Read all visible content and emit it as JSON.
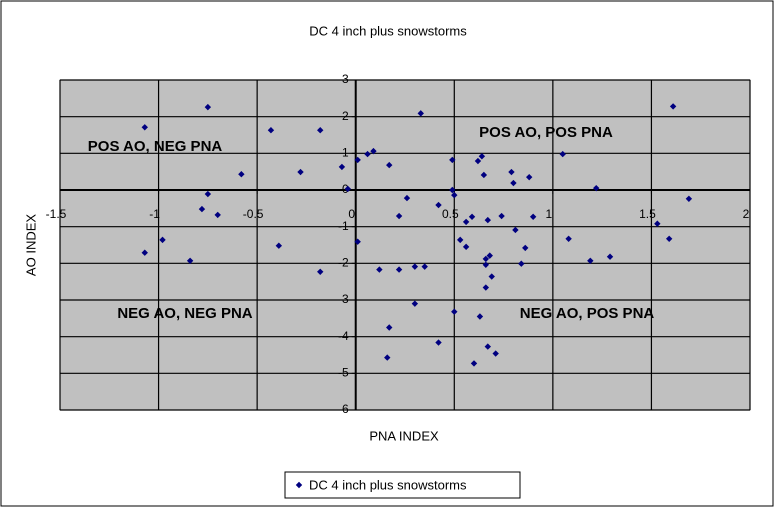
{
  "chart_data": {
    "type": "scatter",
    "title": "DC 4 inch plus snowstorms",
    "x_label": "PNA INDEX",
    "y_label": "AO INDEX",
    "xlim": [
      -1.5,
      2
    ],
    "xticks": [
      -1.5,
      -1,
      -0.5,
      0,
      0.5,
      1,
      1.5,
      2
    ],
    "ylim": [
      -6,
      3
    ],
    "yticks": [
      3,
      2,
      1,
      0,
      -1,
      -2,
      -3,
      -4,
      -5,
      -6
    ],
    "grid": true,
    "legend": "bottom",
    "annotations": [
      "POS AO, NEG PNA",
      "POS AO, POS PNA",
      "NEG AO, NEG PNA",
      "NEG AO, POS PNA"
    ],
    "series": [
      {
        "name": "DC 4 inch plus snowstorms",
        "color": "#000080",
        "x": [
          -1.07,
          -0.75,
          -0.43,
          -0.18,
          -0.58,
          -0.28,
          -0.75,
          -0.78,
          -0.7,
          -0.98,
          -1.07,
          -0.84,
          -0.39,
          -0.18,
          -0.07,
          -0.04,
          0.01,
          0.06,
          0.09,
          0.01,
          0.33,
          0.17,
          0.26,
          0.22,
          0.12,
          0.22,
          0.3,
          0.35,
          0.3,
          0.17,
          0.16,
          0.42,
          0.42,
          0.49,
          0.49,
          0.5,
          0.53,
          0.56,
          0.56,
          0.5,
          0.59,
          0.62,
          0.64,
          0.65,
          0.67,
          0.74,
          0.66,
          0.66,
          0.68,
          0.69,
          0.66,
          0.63,
          0.6,
          0.67,
          0.71,
          0.79,
          0.8,
          0.88,
          0.81,
          0.9,
          0.86,
          0.84,
          1.05,
          1.08,
          1.22,
          1.19,
          1.29,
          1.61,
          1.53,
          1.59,
          1.69
        ],
        "values": [
          1.71,
          2.26,
          1.63,
          1.63,
          0.43,
          0.49,
          -0.11,
          -0.52,
          -0.68,
          -1.36,
          -1.71,
          -1.93,
          -1.52,
          -2.23,
          0.63,
          0.03,
          0.82,
          0.98,
          1.06,
          -1.41,
          2.09,
          0.68,
          -0.22,
          -0.71,
          -2.17,
          -2.17,
          -2.09,
          -2.09,
          -3.1,
          -3.75,
          -4.57,
          -4.16,
          -0.41,
          0.82,
          0.0,
          -0.14,
          -1.36,
          -1.55,
          -0.87,
          -3.32,
          -0.73,
          0.79,
          0.92,
          0.41,
          -0.82,
          -0.71,
          -1.88,
          -2.04,
          -1.79,
          -2.36,
          -2.66,
          -3.45,
          -4.73,
          -4.27,
          -4.46,
          0.49,
          0.19,
          0.35,
          -1.09,
          -0.73,
          -1.58,
          -2.01,
          0.98,
          -1.33,
          0.05,
          -1.93,
          -1.82,
          2.28,
          -0.92,
          -1.33,
          -0.24
        ]
      }
    ]
  }
}
